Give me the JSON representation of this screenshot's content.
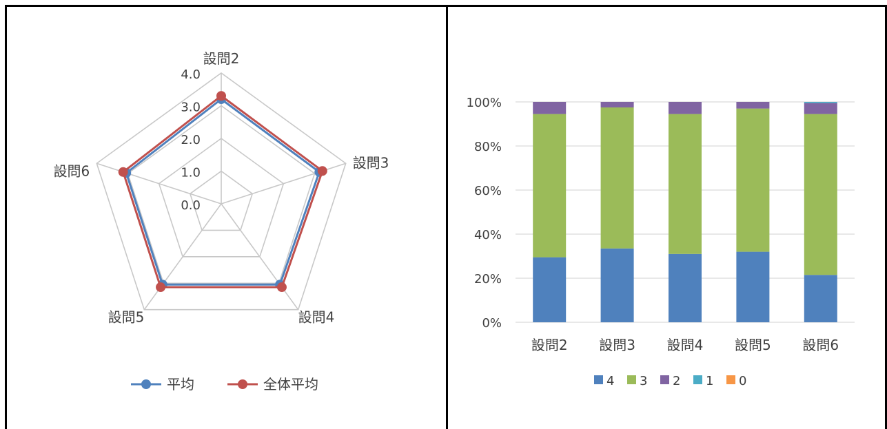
{
  "chart_data": [
    {
      "type": "radar",
      "categories": [
        "設問2",
        "設問3",
        "設問4",
        "設問5",
        "設問6"
      ],
      "axis_ticks": [
        "0.0",
        "1.0",
        "2.0",
        "3.0",
        "4.0"
      ],
      "rmax": 4.0,
      "series": [
        {
          "name": "平均",
          "color": "#4f81bd",
          "values": [
            3.2,
            3.15,
            3.05,
            3.05,
            3.05
          ]
        },
        {
          "name": "全体平均",
          "color": "#c0504d",
          "values": [
            3.3,
            3.25,
            3.15,
            3.15,
            3.15
          ]
        }
      ],
      "legend_position": "bottom",
      "grid": true
    },
    {
      "type": "stacked_bar_100",
      "categories": [
        "設問2",
        "設問3",
        "設問4",
        "設問5",
        "設問6"
      ],
      "y_ticks": [
        "0%",
        "20%",
        "40%",
        "60%",
        "80%",
        "100%"
      ],
      "ylim": [
        0,
        100
      ],
      "series": [
        {
          "name": "4",
          "color": "#4f81bd",
          "values": [
            29.5,
            33.5,
            31,
            32,
            21.5
          ]
        },
        {
          "name": "3",
          "color": "#9bbb59",
          "values": [
            65,
            64,
            63.5,
            65,
            73
          ]
        },
        {
          "name": "2",
          "color": "#8064a2",
          "values": [
            5.5,
            2.5,
            5.5,
            3,
            5
          ]
        },
        {
          "name": "1",
          "color": "#4bacc6",
          "values": [
            0,
            0,
            0,
            0,
            0.5
          ]
        },
        {
          "name": "0",
          "color": "#f79646",
          "values": [
            0,
            0,
            0,
            0,
            0
          ]
        }
      ],
      "legend_position": "bottom",
      "grid": true
    }
  ]
}
